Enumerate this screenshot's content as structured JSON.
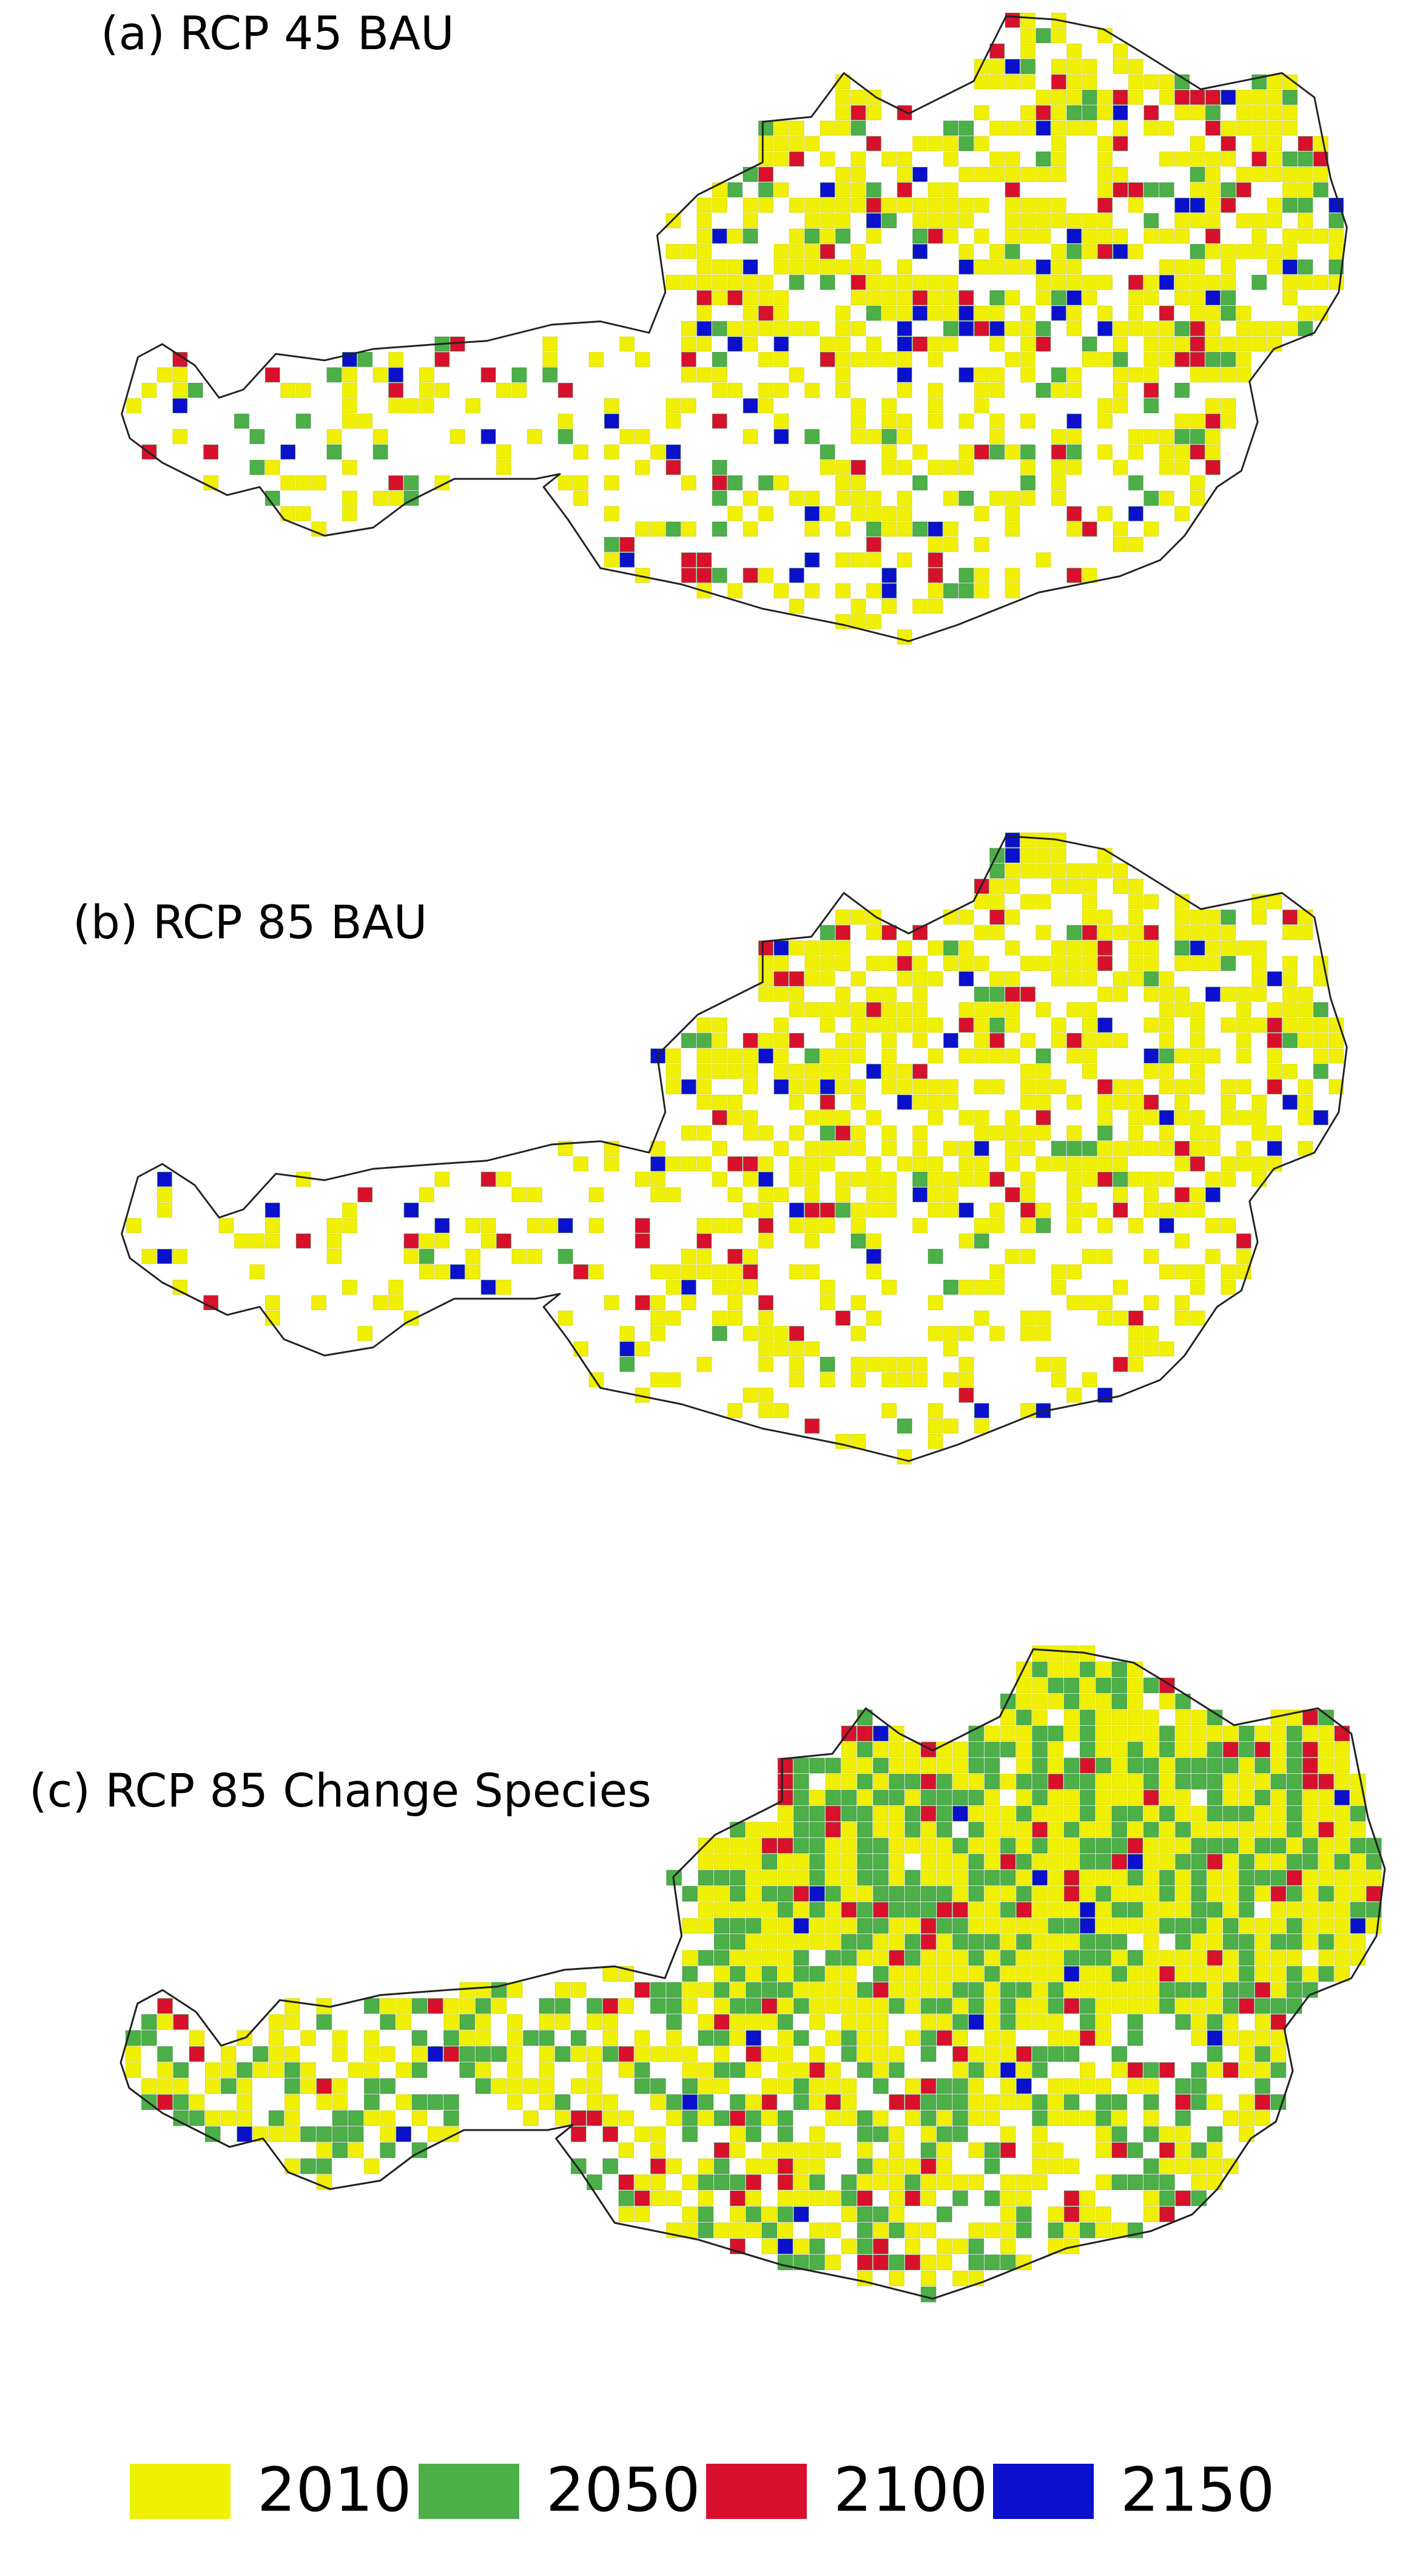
{
  "panels": [
    {
      "title": "(a) RCP 45 BAU"
    },
    {
      "title": "(b) RCP 85 BAU"
    },
    {
      "title": "(c) RCP 85 Change Species"
    }
  ],
  "legend": {
    "items": [
      {
        "label": "2010",
        "color": "#f0f000"
      },
      {
        "label": "2050",
        "color": "#4caf48"
      },
      {
        "label": "2100",
        "color": "#d8102c"
      },
      {
        "label": "2150",
        "color": "#0a10cc"
      }
    ]
  }
}
